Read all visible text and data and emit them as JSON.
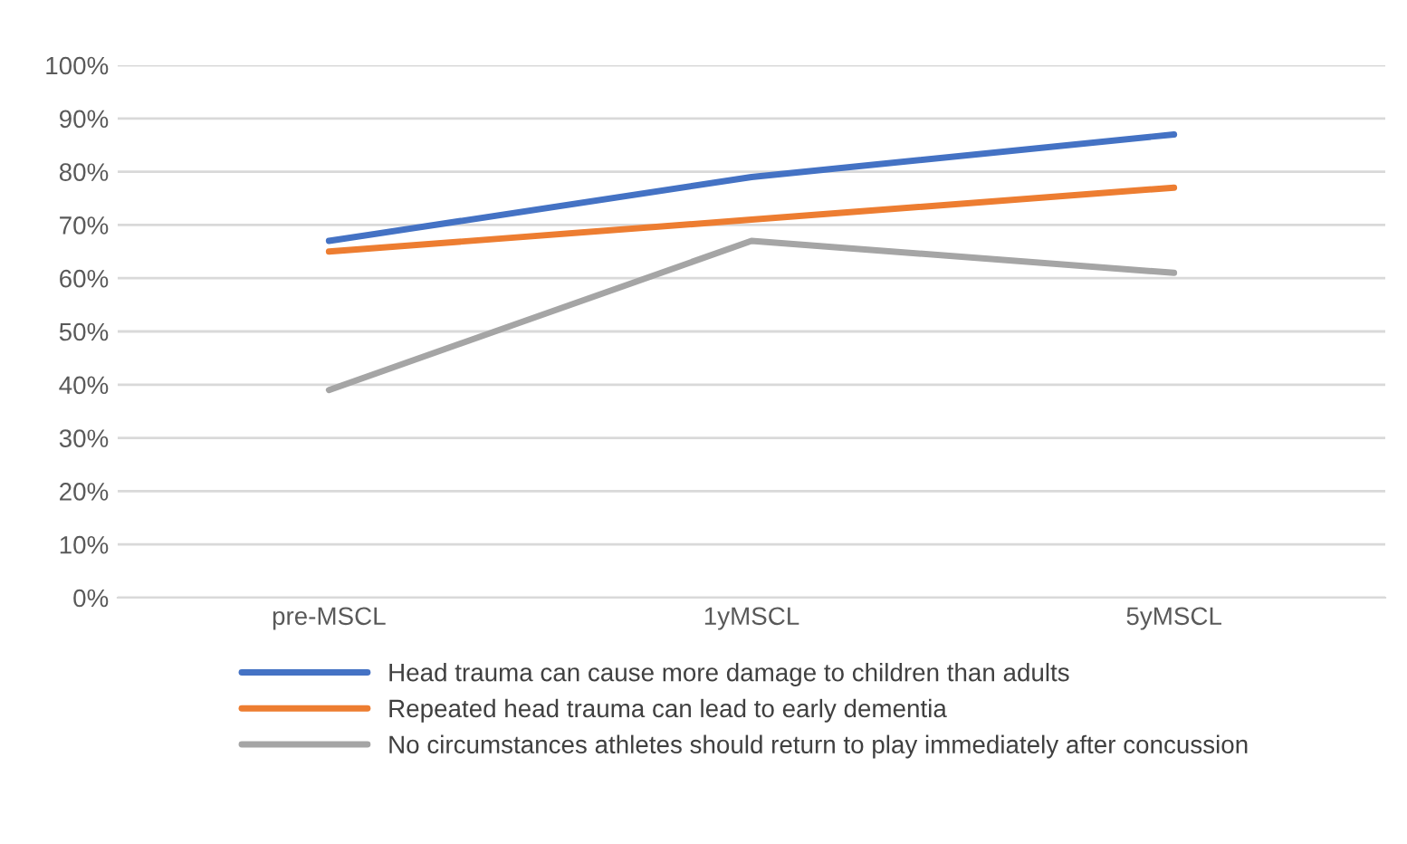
{
  "chart_data": {
    "type": "line",
    "categories": [
      "pre-MSCL",
      "1yMSCL",
      "5yMSCL"
    ],
    "series": [
      {
        "name": "Head trauma can cause more damage to children than adults",
        "color": "#4472c4",
        "values": [
          67,
          79,
          87
        ]
      },
      {
        "name": "Repeated head trauma can lead to early dementia",
        "color": "#ed7d31",
        "values": [
          65,
          71,
          77
        ]
      },
      {
        "name": "No circumstances athletes should return to play immediately after concussion",
        "color": "#a5a5a5",
        "values": [
          39,
          67,
          61
        ]
      }
    ],
    "ylim": [
      0,
      100
    ],
    "yticks": [
      {
        "value": 0,
        "label": "0%"
      },
      {
        "value": 10,
        "label": "10%"
      },
      {
        "value": 20,
        "label": "20%"
      },
      {
        "value": 30,
        "label": "30%"
      },
      {
        "value": 40,
        "label": "40%"
      },
      {
        "value": 50,
        "label": "50%"
      },
      {
        "value": 60,
        "label": "60%"
      },
      {
        "value": 70,
        "label": "70%"
      },
      {
        "value": 80,
        "label": "80%"
      },
      {
        "value": 90,
        "label": "90%"
      },
      {
        "value": 100,
        "label": "100%"
      }
    ],
    "grid": "y",
    "legend": "bottom",
    "marker": "none",
    "line_style": "solid"
  }
}
